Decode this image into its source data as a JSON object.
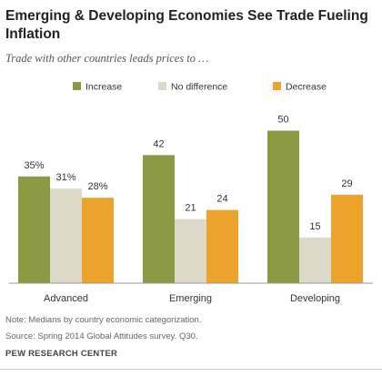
{
  "header": {
    "title": "Emerging & Developing Economies See Trade Fueling Inflation",
    "subtitle": "Trade with other countries leads prices to …"
  },
  "footer": {
    "note": "Note: Medians by country economic categorization.",
    "source": "Source: Spring 2014 Global Attitudes survey. Q30.",
    "org": "PEW RESEARCH CENTER"
  },
  "colors": {
    "increase": "#8c9a44",
    "no_difference": "#dcd9c9",
    "decrease": "#eba32b"
  },
  "chart_data": {
    "type": "bar",
    "categories": [
      "Advanced",
      "Emerging",
      "Developing"
    ],
    "series": [
      {
        "name": "Increase",
        "values": [
          35,
          42,
          50
        ],
        "labels": [
          "35%",
          "42",
          "50"
        ],
        "color": "#8c9a44"
      },
      {
        "name": "No difference",
        "values": [
          31,
          21,
          15
        ],
        "labels": [
          "31%",
          "21",
          "15"
        ],
        "color": "#dcd9c9"
      },
      {
        "name": "Decrease",
        "values": [
          28,
          24,
          29
        ],
        "labels": [
          "28%",
          "24",
          "29"
        ],
        "color": "#eba32b"
      }
    ],
    "ylim": [
      0,
      60
    ],
    "grid": false,
    "legend": "top-center"
  }
}
